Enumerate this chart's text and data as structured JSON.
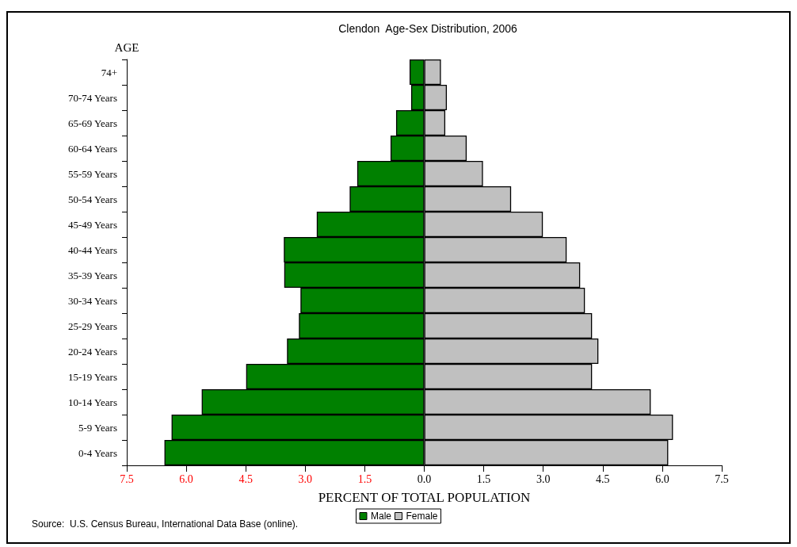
{
  "chart_data": {
    "type": "bar",
    "orientation": "horizontal",
    "title": "Clendon  Age-Sex Distribution, 2006",
    "xlabel": "PERCENT OF TOTAL POPULATION",
    "ylabel": "AGE",
    "categories": [
      "74+",
      "70-74 Years",
      "65-69 Years",
      "60-64 Years",
      "55-59 Years",
      "50-54 Years",
      "45-49 Years",
      "40-44 Years",
      "35-39 Years",
      "30-34 Years",
      "25-29 Years",
      "20-24 Years",
      "15-19 Years",
      "10-14 Years",
      "5-9 Years",
      "0-4 Years"
    ],
    "series": [
      {
        "name": "Male",
        "color": "#008000",
        "values": [
          -0.37,
          -0.33,
          -0.71,
          -0.85,
          -1.69,
          -1.88,
          -2.71,
          -3.54,
          -3.53,
          -3.12,
          -3.16,
          -3.46,
          -4.49,
          -5.61,
          -6.37,
          -6.55
        ]
      },
      {
        "name": "Female",
        "color": "#c0c0c0",
        "values": [
          0.42,
          0.57,
          0.53,
          1.07,
          1.48,
          2.19,
          2.99,
          3.59,
          3.93,
          4.05,
          4.23,
          4.39,
          4.23,
          5.71,
          6.27,
          6.15
        ]
      }
    ],
    "xlim": [
      -7.5,
      7.5
    ],
    "xticks": [
      {
        "value": -7.5,
        "label": "7.5"
      },
      {
        "value": -6,
        "label": "6.0"
      },
      {
        "value": -4.5,
        "label": "4.5"
      },
      {
        "value": -3,
        "label": "3.0"
      },
      {
        "value": -1.5,
        "label": "1.5"
      },
      {
        "value": 0,
        "label": "0.0"
      },
      {
        "value": 1.5,
        "label": "1.5"
      },
      {
        "value": 3,
        "label": "3.0"
      },
      {
        "value": 4.5,
        "label": "4.5"
      },
      {
        "value": 6,
        "label": "6.0"
      },
      {
        "value": 7.5,
        "label": "7.5"
      }
    ],
    "stacked": true,
    "grid": false,
    "legend": "bottom",
    "annotations": [
      "Source:  U.S. Census Bureau, International Data Base (online)."
    ]
  }
}
